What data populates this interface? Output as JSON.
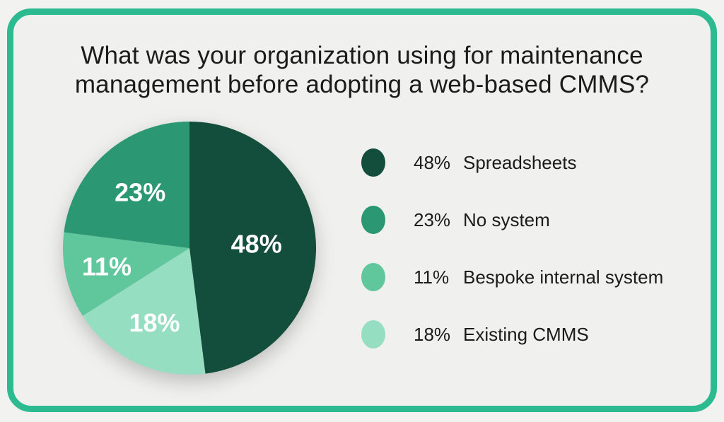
{
  "page": {
    "background": "#f2f2f1",
    "card_background": "#f0f0ef",
    "border_color": "#2cbb90",
    "text_color": "#1b1b1b"
  },
  "title": {
    "text": "What was your organization using for maintenance management before adopting a web-based CMMS?"
  },
  "chart_data": {
    "type": "pie",
    "title": "What was your organization using for maintenance management before adopting a web-based CMMS?",
    "start_angle_deg": 0,
    "direction": "clockwise",
    "pie_label_color": "#ffffff",
    "slices": [
      {
        "label": "Spreadsheets",
        "value": 48,
        "pct_label": "48%",
        "color": "#134d3b",
        "label_r_frac": 0.53
      },
      {
        "label": "Existing CMMS",
        "value": 18,
        "pct_label": "18%",
        "color": "#96dec2",
        "label_r_frac": 0.65
      },
      {
        "label": "Bespoke internal system",
        "value": 11,
        "pct_label": "11%",
        "color": "#60c69c",
        "label_r_frac": 0.67
      },
      {
        "label": "No system",
        "value": 23,
        "pct_label": "23%",
        "color": "#2b9773",
        "label_r_frac": 0.59
      }
    ],
    "legend": {
      "position": "right",
      "order": [
        0,
        3,
        2,
        1
      ]
    }
  }
}
